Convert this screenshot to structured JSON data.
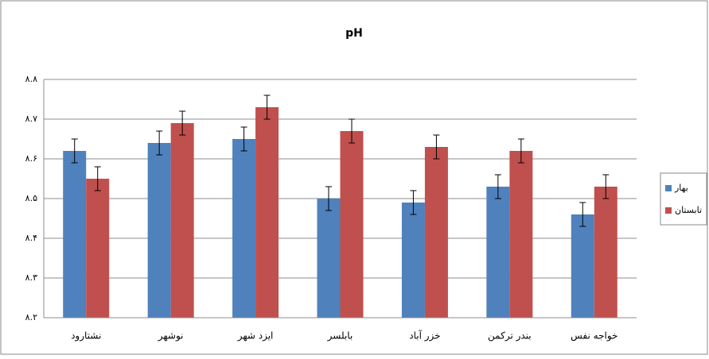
{
  "chart_data": {
    "type": "bar",
    "title": "pH",
    "categories": [
      "نشتارود",
      "نوشهر",
      "ایزد شهر",
      "بابلسر",
      "خزر آباد",
      "بندر ترکمن",
      "خواجه نفس"
    ],
    "series": [
      {
        "name": "بهار",
        "color": "#4f81bd",
        "values": [
          8.62,
          8.64,
          8.65,
          8.5,
          8.49,
          8.53,
          8.46
        ],
        "errors": [
          0.03,
          0.03,
          0.03,
          0.03,
          0.03,
          0.03,
          0.03
        ]
      },
      {
        "name": "تابستان",
        "color": "#c0504d",
        "values": [
          8.55,
          8.69,
          8.73,
          8.67,
          8.63,
          8.62,
          8.53
        ],
        "errors": [
          0.03,
          0.03,
          0.03,
          0.03,
          0.03,
          0.03,
          0.03
        ]
      }
    ],
    "ylim": [
      8.2,
      8.8
    ],
    "yticks": [
      {
        "value": 8.2,
        "label": "۸.۲"
      },
      {
        "value": 8.3,
        "label": "۸.۳"
      },
      {
        "value": 8.4,
        "label": "۸.۴"
      },
      {
        "value": 8.5,
        "label": "۸.۵"
      },
      {
        "value": 8.6,
        "label": "۸.۶"
      },
      {
        "value": 8.7,
        "label": "۸.۷"
      },
      {
        "value": 8.8,
        "label": "۸.۸"
      }
    ],
    "grid": true,
    "legend": "right"
  }
}
